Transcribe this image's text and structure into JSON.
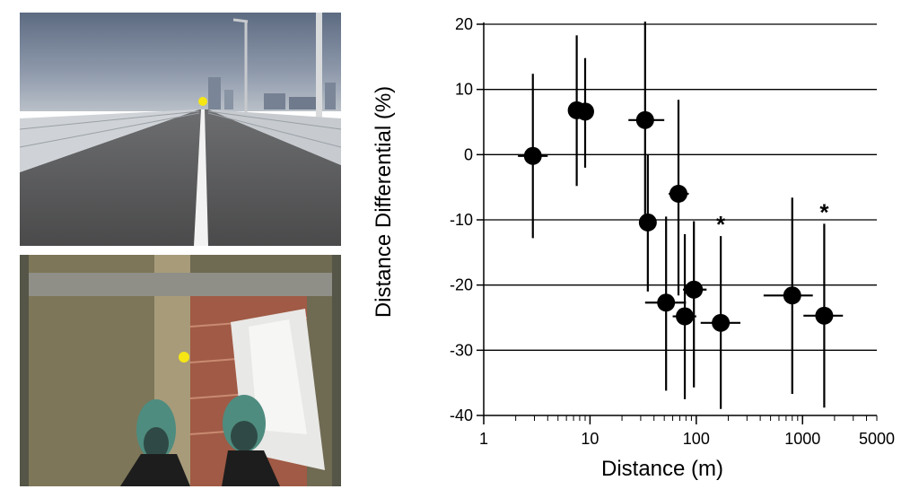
{
  "photos": [
    {
      "scene": "highway road with yellow target dot at horizon"
    },
    {
      "scene": "view downward through glass floor with feet and yellow target dot"
    }
  ],
  "colors": {
    "target_dot": "#f5e614",
    "marker": "#000000",
    "grid": "#000000"
  },
  "chart_data": {
    "type": "scatter",
    "xlabel": "Distance (m)",
    "ylabel": "Distance Differential (%)",
    "xscale": "log",
    "xlim": [
      1,
      5000
    ],
    "ylim": [
      -40,
      20
    ],
    "x_ticks": [
      1,
      10,
      100,
      1000,
      5000
    ],
    "x_tick_labels": [
      "1",
      "10",
      "100",
      "1000",
      "5000"
    ],
    "y_ticks": [
      20,
      10,
      0,
      -10,
      -20,
      -30,
      -40
    ],
    "y_tick_labels": [
      "20",
      "10",
      "0",
      "-10",
      "-20",
      "-30",
      "-40"
    ],
    "grid": "horizontal",
    "error_bars": true,
    "points": [
      {
        "x": 2.9,
        "y": -0.2,
        "x_lo": 2.1,
        "x_hi": 4.0,
        "y_lo": -12.8,
        "y_hi": 12.4,
        "marked": false
      },
      {
        "x": 7.5,
        "y": 6.8,
        "x_lo": 6.5,
        "x_hi": 8.7,
        "y_lo": -4.8,
        "y_hi": 18.3,
        "marked": false
      },
      {
        "x": 9.0,
        "y": 6.6,
        "x_lo": 8.0,
        "x_hi": 10.0,
        "y_lo": -2.0,
        "y_hi": 14.8,
        "marked": false
      },
      {
        "x": 33,
        "y": 5.3,
        "x_lo": 23,
        "x_hi": 50,
        "y_lo": -10.2,
        "y_hi": 20.4,
        "marked": false
      },
      {
        "x": 35,
        "y": -10.4,
        "x_lo": 30,
        "x_hi": 40,
        "y_lo": -21.0,
        "y_hi": 0.0,
        "marked": false
      },
      {
        "x": 68,
        "y": -6.0,
        "x_lo": 55,
        "x_hi": 85,
        "y_lo": -21.6,
        "y_hi": 8.4,
        "marked": false
      },
      {
        "x": 52,
        "y": -22.7,
        "x_lo": 33,
        "x_hi": 80,
        "y_lo": -36.2,
        "y_hi": -9.5,
        "marked": false
      },
      {
        "x": 78,
        "y": -24.8,
        "x_lo": 60,
        "x_hi": 100,
        "y_lo": -37.5,
        "y_hi": -12.2,
        "marked": false
      },
      {
        "x": 95,
        "y": -20.7,
        "x_lo": 75,
        "x_hi": 125,
        "y_lo": -35.7,
        "y_hi": -10.2,
        "marked": false
      },
      {
        "x": 170,
        "y": -25.8,
        "x_lo": 110,
        "x_hi": 260,
        "y_lo": -39.0,
        "y_hi": -12.5,
        "marked": true
      },
      {
        "x": 800,
        "y": -21.6,
        "x_lo": 430,
        "x_hi": 1250,
        "y_lo": -36.7,
        "y_hi": -6.6,
        "marked": false
      },
      {
        "x": 1600,
        "y": -24.7,
        "x_lo": 1020,
        "x_hi": 2400,
        "y_lo": -38.8,
        "y_hi": -10.6,
        "marked": true
      }
    ],
    "annotation": "*"
  }
}
